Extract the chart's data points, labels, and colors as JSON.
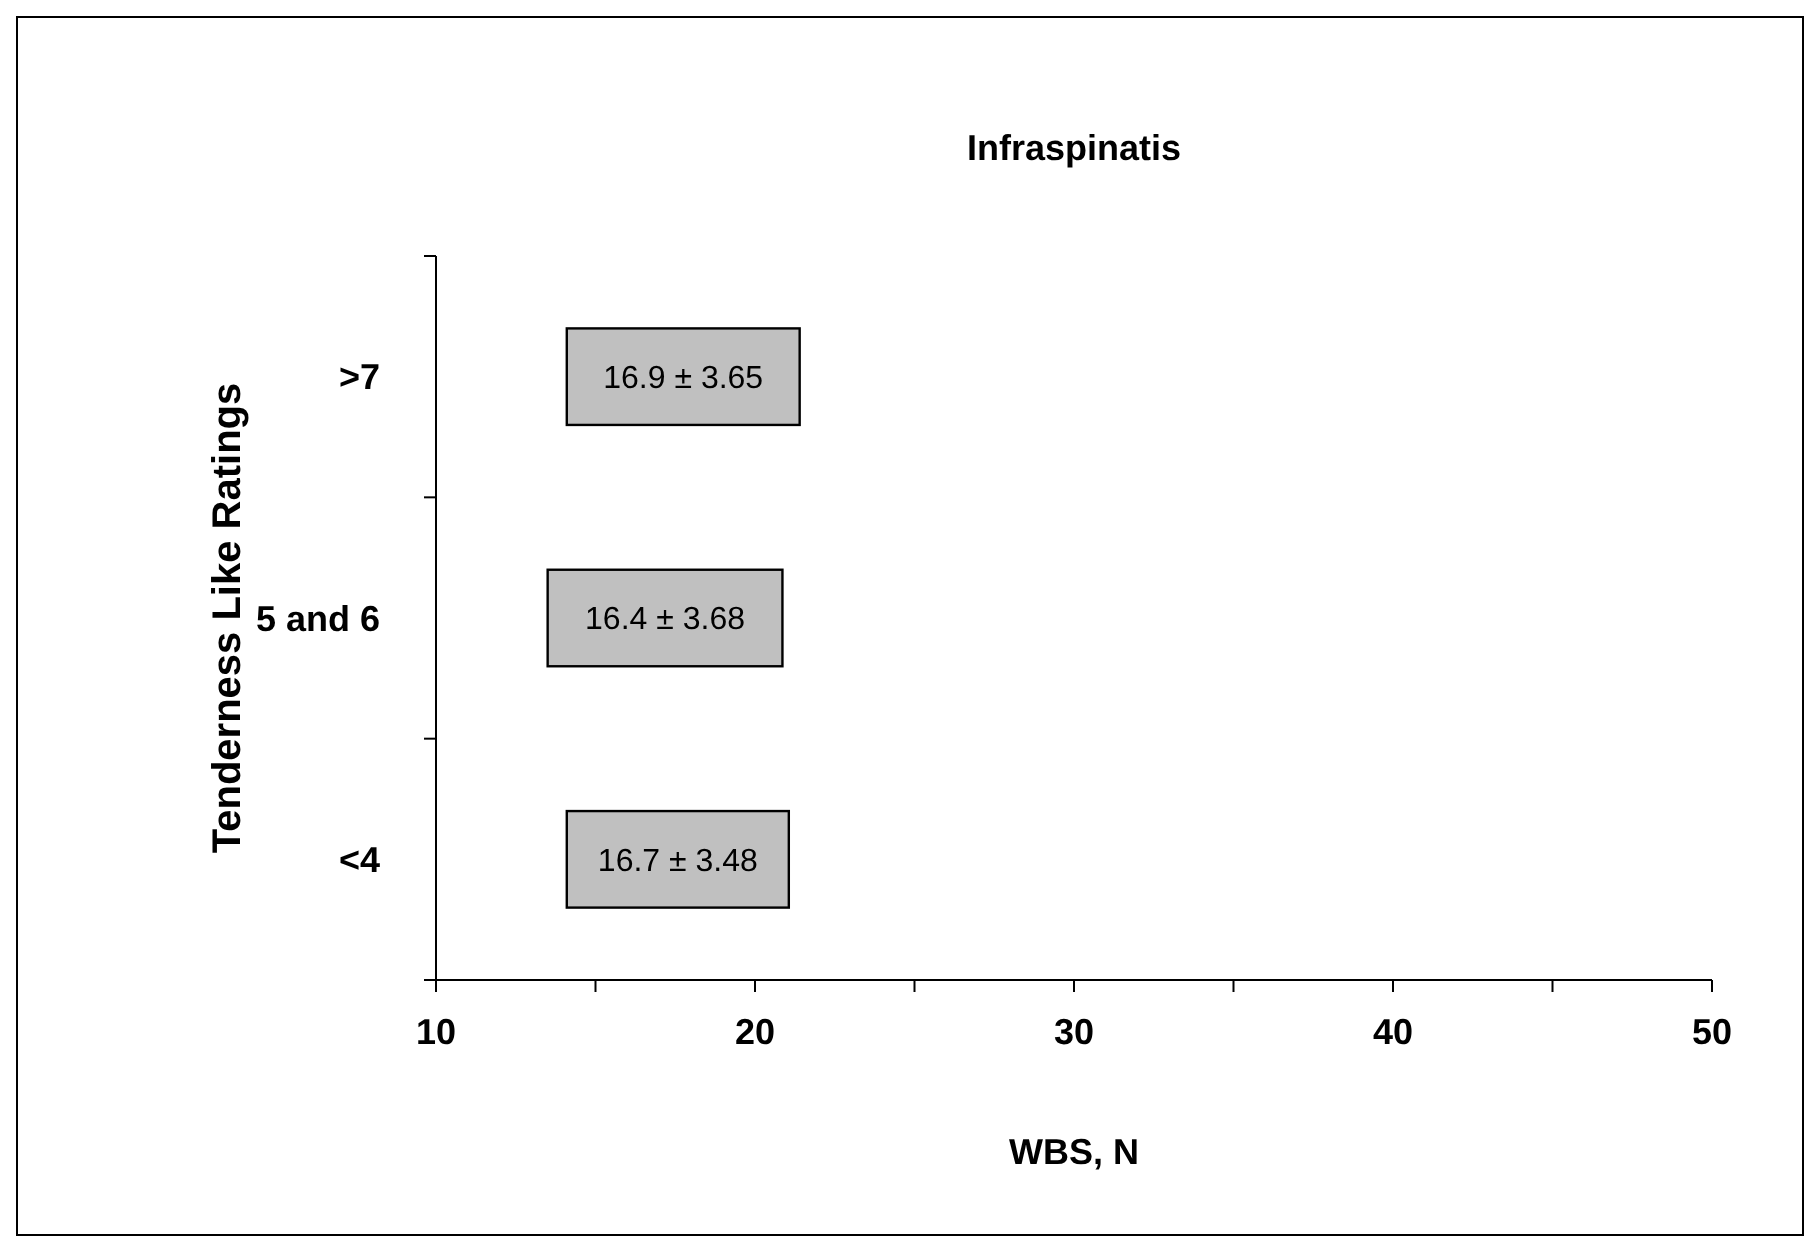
{
  "chart_data": {
    "type": "bar",
    "orientation": "horizontal",
    "title": "Infraspinatis",
    "xlabel": "WBS, N",
    "ylabel": "Tenderness Like Ratings",
    "categories": [
      ">7",
      "5 and 6",
      "<4"
    ],
    "values": [
      7.3,
      7.36,
      6.96
    ],
    "base": [
      14.1,
      13.5,
      14.1
    ],
    "annotations": [
      "16.9 ± 3.65",
      "16.4 ± 3.68",
      "16.7 ± 3.48"
    ],
    "color": "#c0c0c0",
    "xlim": [
      10,
      50
    ],
    "xticks": [
      10,
      {
        "value": 15,
        "label": null
      },
      20,
      {
        "value": 25,
        "label": null
      },
      30,
      {
        "value": 35,
        "label": null
      },
      40,
      {
        "value": 45,
        "label": null
      },
      50
    ],
    "grid": false
  }
}
